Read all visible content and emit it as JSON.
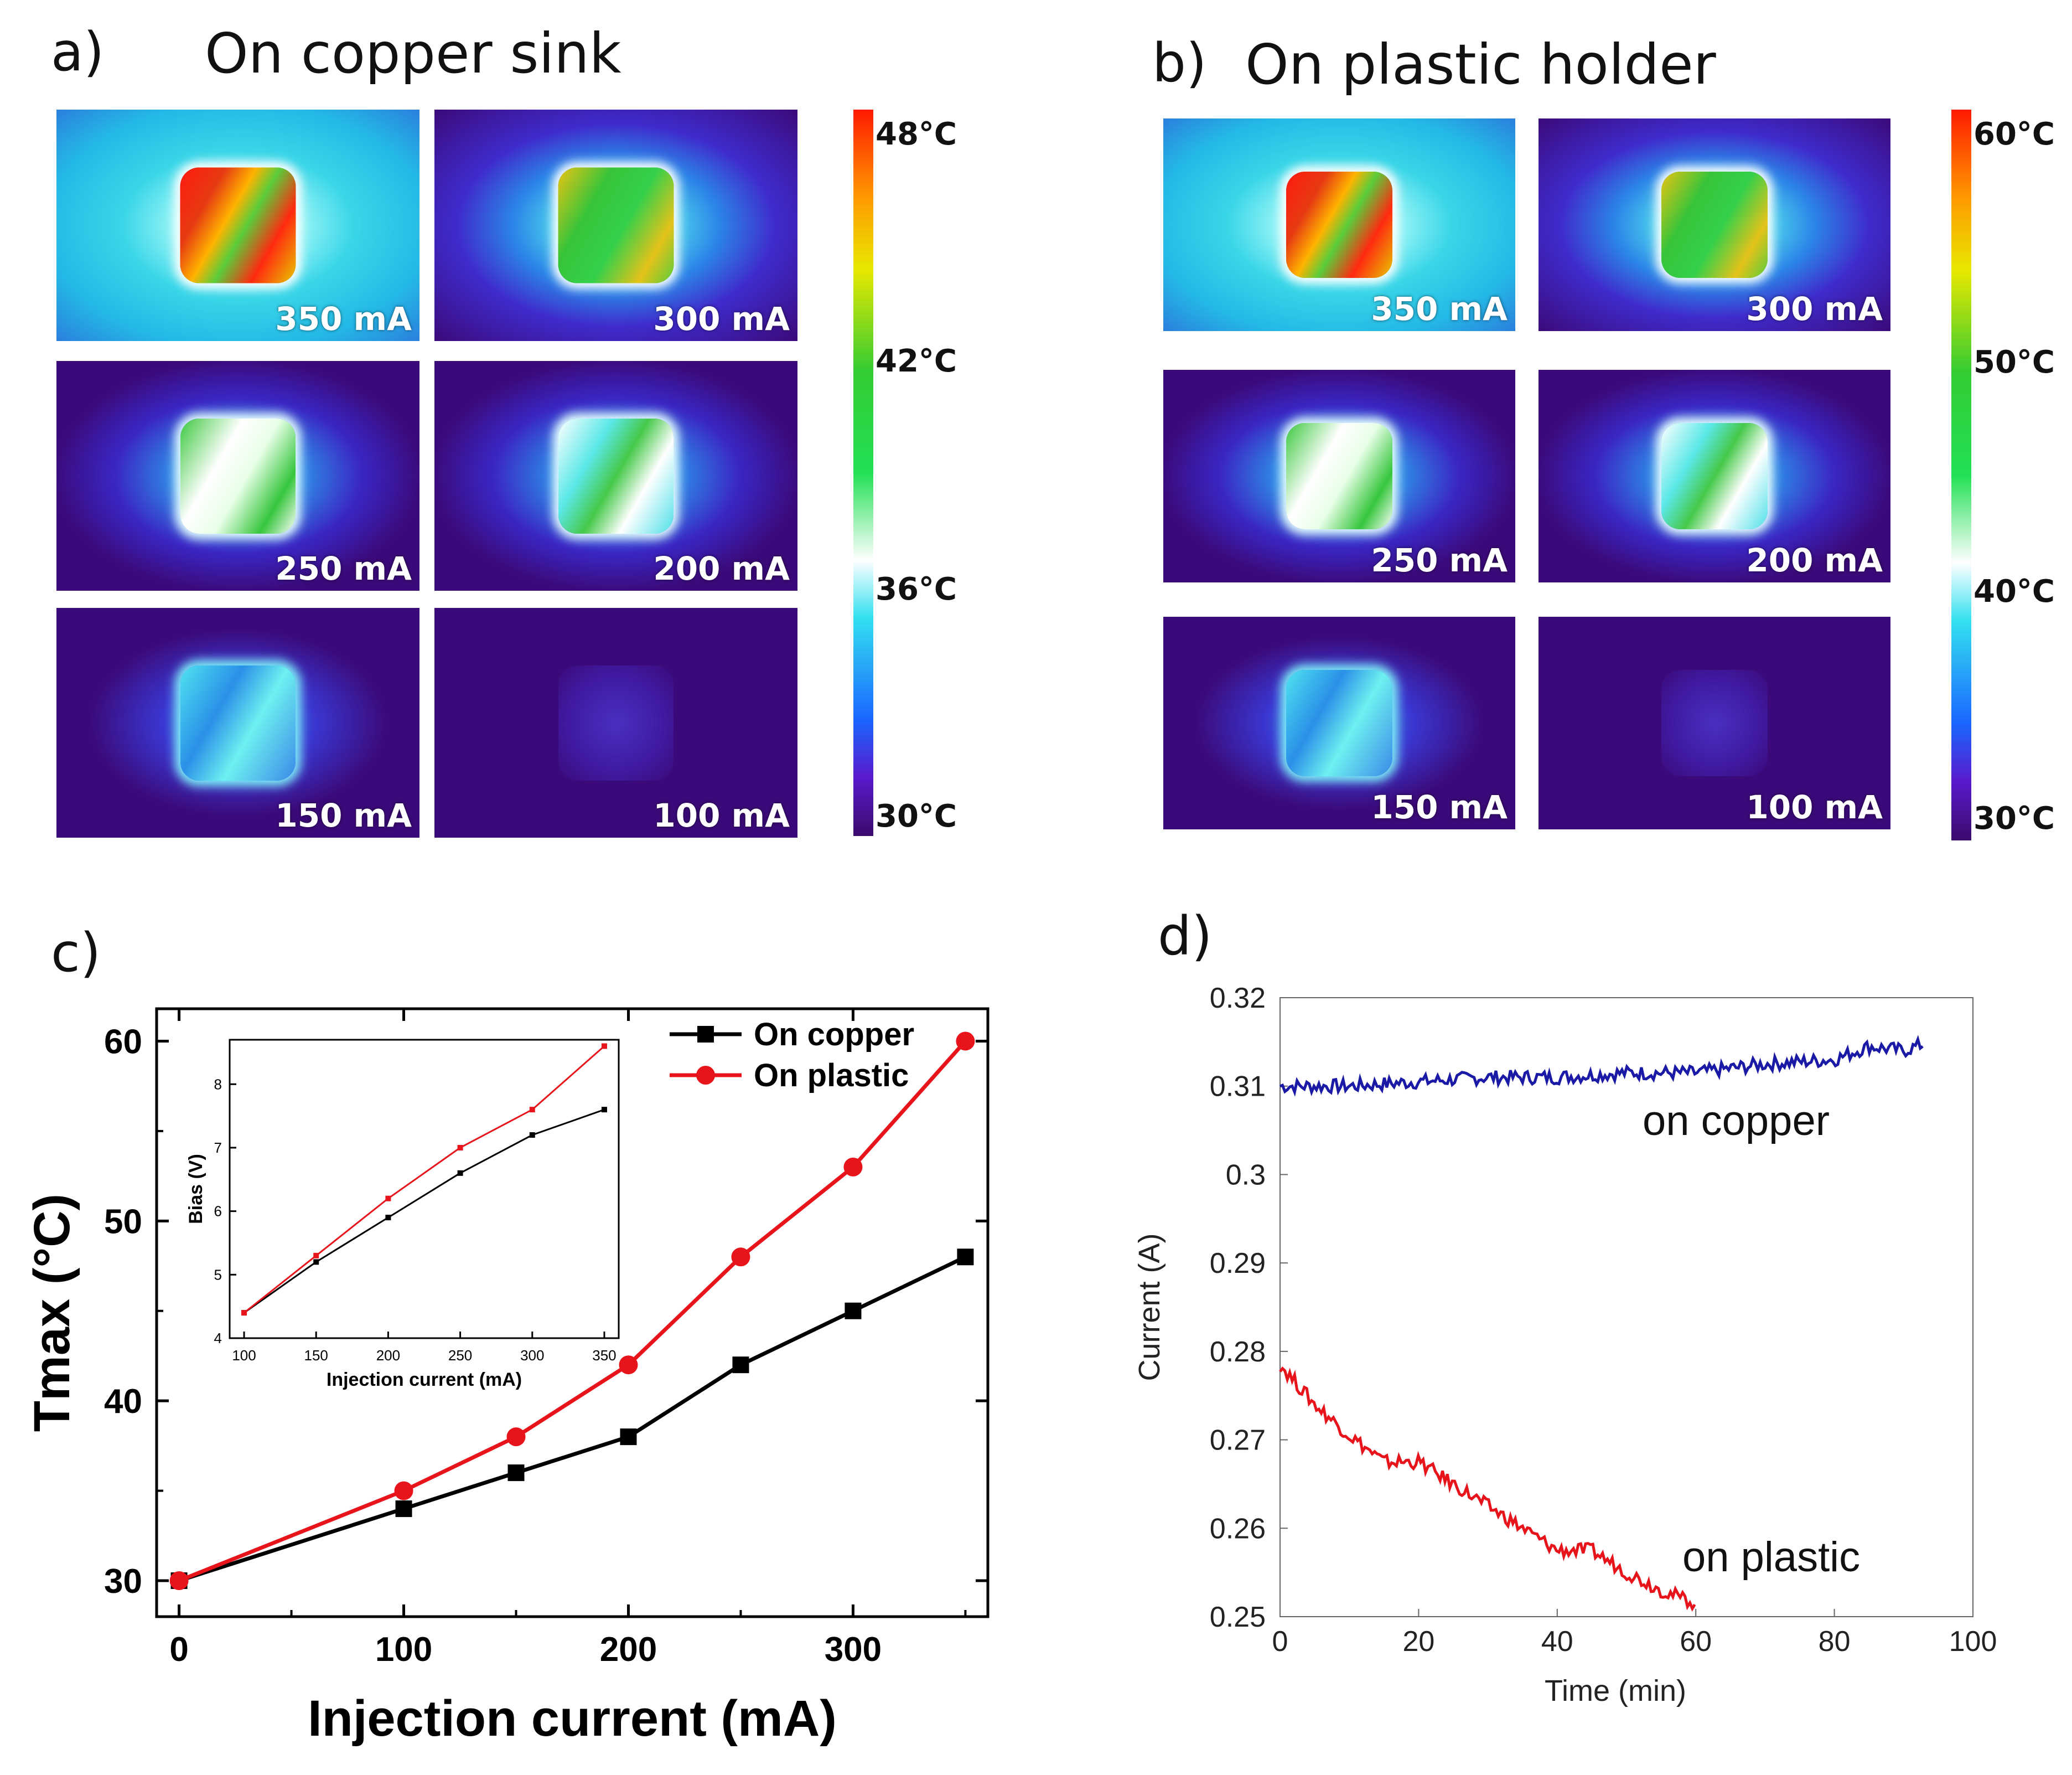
{
  "panel_a": {
    "letter": "a)",
    "title": "On copper sink",
    "tiles": [
      {
        "label": "350 mA",
        "level": "hot"
      },
      {
        "label": "300 mA",
        "level": "warm"
      },
      {
        "label": "250 mA",
        "level": "mid"
      },
      {
        "label": "200 mA",
        "level": "mid2"
      },
      {
        "label": "150 mA",
        "level": "cool"
      },
      {
        "label": "100 mA",
        "level": "cold"
      }
    ],
    "colorbar": [
      "48°C",
      "42°C",
      "36°C",
      "30°C"
    ]
  },
  "panel_b": {
    "letter": "b)",
    "title": "On plastic holder",
    "tiles": [
      {
        "label": "350 mA",
        "level": "hot"
      },
      {
        "label": "300 mA",
        "level": "warm"
      },
      {
        "label": "250 mA",
        "level": "mid"
      },
      {
        "label": "200 mA",
        "level": "mid2"
      },
      {
        "label": "150 mA",
        "level": "cool"
      },
      {
        "label": "100 mA",
        "level": "cold"
      }
    ],
    "colorbar": [
      "60°C",
      "50°C",
      "40°C",
      "30°C"
    ]
  },
  "panel_c": {
    "letter": "c)"
  },
  "panel_d": {
    "letter": "d)"
  },
  "chart_data": [
    {
      "id": "c-main",
      "type": "line",
      "xlabel": "Injection current (mA)",
      "ylabel": "Tmax (°C)",
      "xlim": [
        -10,
        360
      ],
      "ylim": [
        28,
        61.8
      ],
      "xticks": [
        "0",
        "100",
        "200",
        "300"
      ],
      "yticks": [
        "30",
        "40",
        "50",
        "60"
      ],
      "legend": "top-right",
      "series": [
        {
          "name": "On copper",
          "color": "#000000",
          "marker": "square",
          "x": [
            0,
            100,
            150,
            200,
            250,
            300,
            350
          ],
          "y": [
            30,
            34,
            36,
            38,
            42,
            45,
            48
          ]
        },
        {
          "name": "On plastic",
          "color": "#e8141c",
          "marker": "circle",
          "x": [
            0,
            100,
            150,
            200,
            250,
            300,
            350
          ],
          "y": [
            30,
            35,
            38,
            42,
            48,
            53,
            60
          ]
        }
      ]
    },
    {
      "id": "c-inset",
      "type": "line",
      "xlabel": "Injection current (mA)",
      "ylabel": "Bias (V)",
      "xlim": [
        90,
        360
      ],
      "ylim": [
        4,
        8.7
      ],
      "xticks": [
        "100",
        "150",
        "200",
        "250",
        "300",
        "350"
      ],
      "yticks": [
        "4",
        "5",
        "6",
        "7",
        "8"
      ],
      "series": [
        {
          "name": "On copper",
          "color": "#000000",
          "x": [
            100,
            150,
            200,
            250,
            300,
            350
          ],
          "y": [
            4.4,
            5.2,
            5.9,
            6.6,
            7.2,
            7.6
          ]
        },
        {
          "name": "On plastic",
          "color": "#e8141c",
          "x": [
            100,
            150,
            200,
            250,
            300,
            350
          ],
          "y": [
            4.4,
            5.3,
            6.2,
            7.0,
            7.6,
            8.6
          ]
        }
      ]
    },
    {
      "id": "d",
      "type": "line",
      "xlabel": "Time (min)",
      "ylabel": "Current (A)",
      "xlim": [
        0,
        100
      ],
      "ylim": [
        0.25,
        0.32
      ],
      "xticks": [
        "0",
        "20",
        "40",
        "60",
        "80",
        "100"
      ],
      "yticks": [
        "0.25",
        "0.26",
        "0.27",
        "0.28",
        "0.29",
        "0.3",
        "0.31",
        "0.32"
      ],
      "series": [
        {
          "name": "on copper",
          "color": "#1a1aa6",
          "x": [
            0,
            10,
            20,
            30,
            40,
            50,
            60,
            70,
            80,
            85,
            90,
            93
          ],
          "y": [
            0.31,
            0.31,
            0.3105,
            0.311,
            0.311,
            0.3115,
            0.3115,
            0.3125,
            0.313,
            0.3145,
            0.314,
            0.3148
          ]
        },
        {
          "name": "on plastic",
          "color": "#e8141c",
          "x": [
            0,
            5,
            10,
            15,
            20,
            25,
            30,
            35,
            40,
            45,
            50,
            55,
            60
          ],
          "y": [
            0.2785,
            0.274,
            0.2705,
            0.2675,
            0.2675,
            0.265,
            0.2625,
            0.26,
            0.2575,
            0.2575,
            0.255,
            0.253,
            0.2515
          ]
        }
      ]
    }
  ]
}
